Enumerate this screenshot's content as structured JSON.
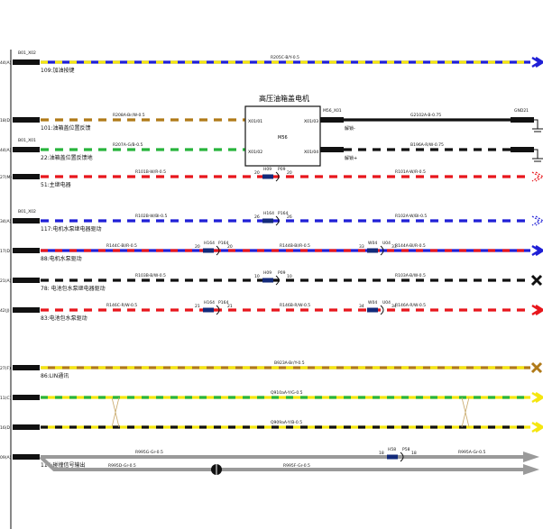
{
  "colors": {
    "yellow": "#f5e60f",
    "blue": "#1f1fd6",
    "brown": "#b07a18",
    "green": "#28b43c",
    "black": "#111111",
    "white": "#ffffff",
    "red": "#e8161c",
    "grey": "#9a9a9a",
    "navy": "#132a7a"
  },
  "motor_box": {
    "title": "高压油箱盖电机",
    "center_label": "M56",
    "pin_tl": "X01/01",
    "pin_bl": "X01/02",
    "pin_tr": "X01/03",
    "pin_br": "X01/04"
  },
  "wires": [
    {
      "id": "w1",
      "left_pin": "44(A)",
      "connector_above": "B01_X02",
      "label": "R205C-B/Y-0.5",
      "colors": [
        "blue",
        "yellow"
      ],
      "desc": "109:加油按键",
      "end": "arrow"
    },
    {
      "id": "w2",
      "left_pin": "18(D)",
      "connector_above": "",
      "label": "R208A-Br/W-0.5",
      "colors": [
        "brown",
        "white"
      ],
      "desc": "101:油箱盖位置反馈",
      "end": "motor",
      "right_conn": "M56_X01",
      "right_label": "G2102A-B-0.75",
      "right_colors": [
        "black",
        "black"
      ],
      "right_end_conn": "GND21",
      "right_desc": "解锁-"
    },
    {
      "id": "w3",
      "left_pin": "44(A)",
      "connector_above": "B01_X01",
      "label": "R207A-G/B-0.5",
      "colors": [
        "green",
        "black"
      ],
      "desc": "22:油箱盖位置反馈地",
      "end": "motor",
      "right_conn": "",
      "right_label": "B196A-R/W-0.75",
      "right_colors": [
        "black",
        "white"
      ],
      "right_desc": "解锁+"
    },
    {
      "id": "w4",
      "left_pin": "27(M)",
      "connector_above": "",
      "label": "R101B-W/R-0.5",
      "colors": [
        "red",
        "white"
      ],
      "desc": "51:主继电器",
      "end": "dashed-arrow",
      "mid_pins": [
        {
          "left": "20",
          "plug": "H09",
          "recep": "P09",
          "right": "20"
        }
      ],
      "right_label": "R101A-W/R-0.5"
    },
    {
      "id": "w5",
      "left_pin": "34(A)",
      "connector_above": "B01_X02",
      "label": "R102B-W/Bl-0.5",
      "colors": [
        "blue",
        "white"
      ],
      "desc": "117:电机水泵继电器驱动",
      "end": "dashed-arrow",
      "mid_pins": [
        {
          "left": "26",
          "plug": "H164",
          "recep": "P164",
          "right": "26"
        }
      ],
      "right_label": "R102A-W/Bl-0.5"
    },
    {
      "id": "w6",
      "left_pin": "17(D)",
      "connector_above": "",
      "label": "R144C-Bl/R-0.5",
      "colors": [
        "blue",
        "red"
      ],
      "desc": "88:电机水泵驱动",
      "end": "arrow",
      "mid_pins": [
        {
          "left": "20",
          "plug": "H164",
          "recep": "P164",
          "right": "20"
        },
        {
          "left": "33",
          "plug": "W04",
          "recep": "U04",
          "right": "33"
        }
      ],
      "mid_label": "R144B-Bl/R-0.5",
      "right_label": "R144A-Bl/R-0.5"
    },
    {
      "id": "w7",
      "left_pin": "21(A)",
      "connector_above": "",
      "label": "R103B-B/W-0.5",
      "colors": [
        "black",
        "white"
      ],
      "desc": "78: 电池包水泵继电器驱动",
      "end": "cross",
      "mid_pins": [
        {
          "left": "10",
          "plug": "H09",
          "recep": "P09",
          "right": "10"
        }
      ],
      "right_label": "R103A-B/W-0.5"
    },
    {
      "id": "w8",
      "left_pin": "42(J)",
      "connector_above": "",
      "label": "R146C-R/W-0.5",
      "colors": [
        "red",
        "white"
      ],
      "desc": "83:电池包水泵驱动",
      "end": "arrow",
      "mid_pins": [
        {
          "left": "21",
          "plug": "H164",
          "recep": "P164",
          "right": "21"
        },
        {
          "left": "34",
          "plug": "W04",
          "recep": "U04",
          "right": "34"
        }
      ],
      "mid_label": "R146B-R/W-0.5",
      "right_label": "R146A-R/W-0.5"
    },
    {
      "id": "w9",
      "left_pin": "27(F)",
      "connector_above": "",
      "label": "B923A-Br/Y-0.5",
      "colors": [
        "brown",
        "yellow"
      ],
      "desc": "86:LIN通讯",
      "end": "cross"
    },
    {
      "id": "w10",
      "left_pin": "11(C)",
      "connector_above": "",
      "label": "Q910aA-Y/G-0.5",
      "colors": [
        "yellow",
        "green"
      ],
      "desc": "",
      "end": "arrow"
    },
    {
      "id": "w11",
      "left_pin": "16(D)",
      "connector_above": "",
      "label": "Q909aA-Y/B-0.5",
      "colors": [
        "yellow",
        "black"
      ],
      "desc": "",
      "end": "arrow"
    },
    {
      "id": "w12",
      "left_pin": "09(A)",
      "connector_above": "",
      "label": "R995G-Gr-0.5",
      "colors": [
        "grey",
        "grey"
      ],
      "desc": "116:碰撞信号输出",
      "end": "grey-arrow",
      "branch_label": "R995D-Gr-0.5",
      "branch_mid_label": "R995F-Gr-0.5",
      "mid_pins": [
        {
          "left": "18",
          "plug": "H58",
          "recep": "P58",
          "right": "18"
        }
      ],
      "right_label": "R995A-Gr-0.5"
    }
  ]
}
